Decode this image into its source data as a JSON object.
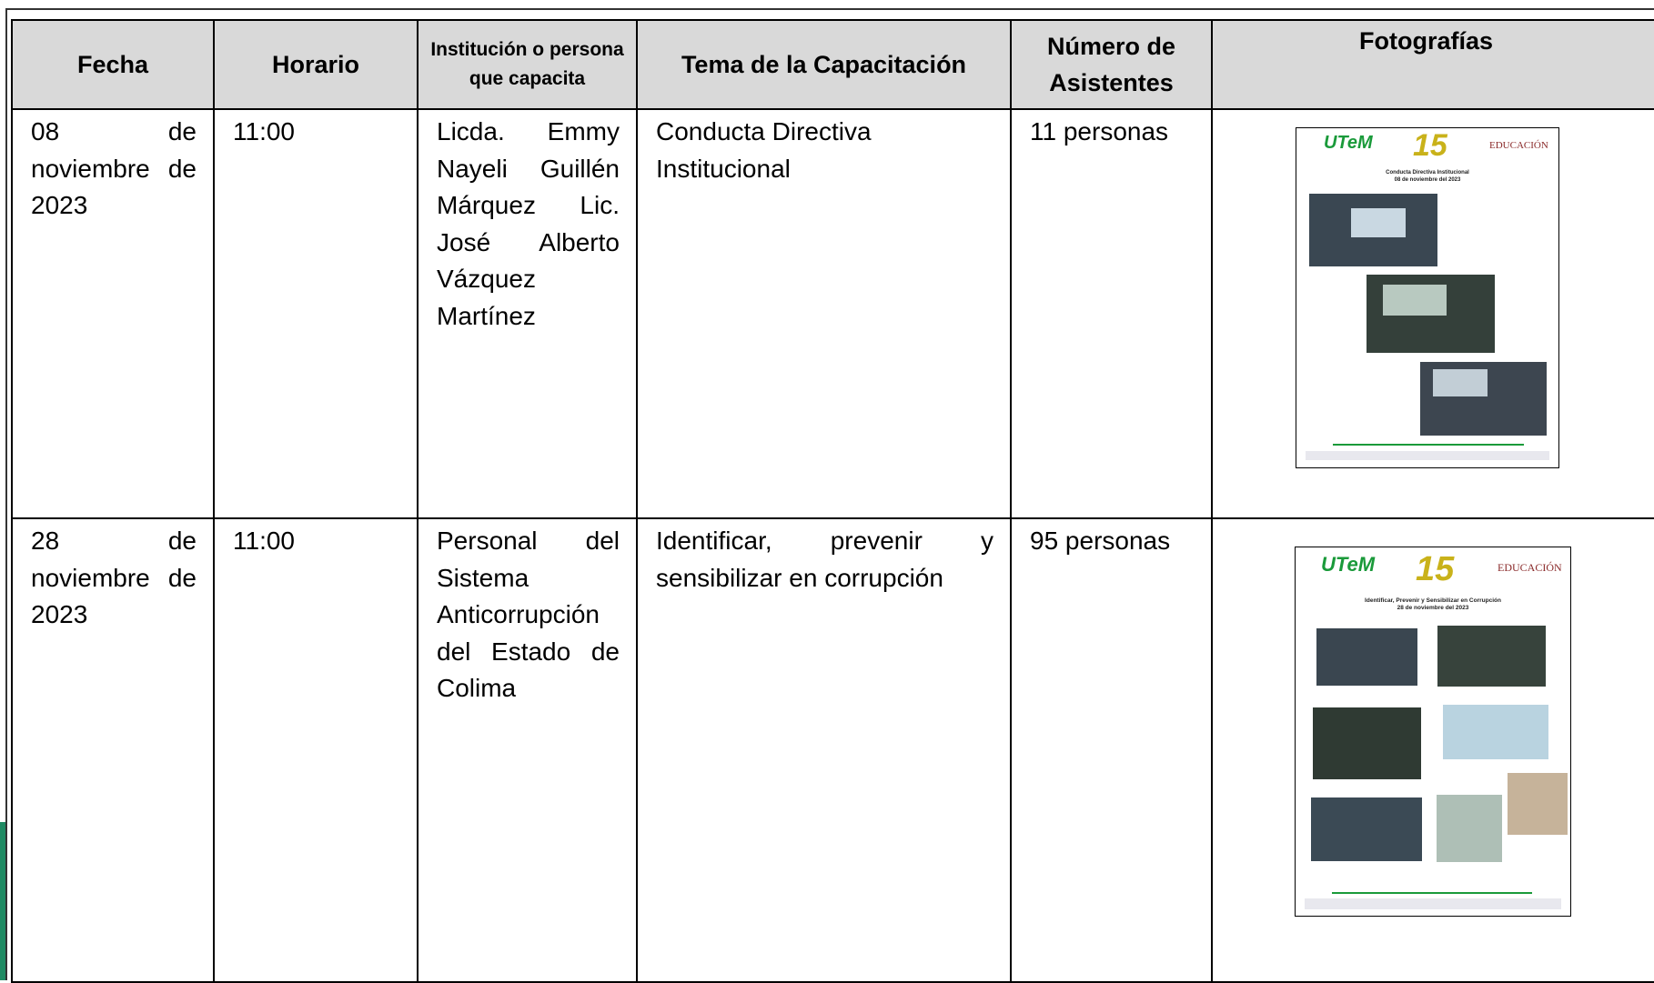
{
  "table": {
    "headers": [
      "Fecha",
      "Horario",
      "Institución o persona que capacita",
      "Tema de la Capacitación",
      "Número de Asistentes",
      "Fotografías"
    ],
    "rows": [
      [
        "08 de noviembre de 2023",
        "11:00",
        "Licda. Emmy Nayeli Guillén Márquez Lic. José Alberto Vázquez Martínez",
        "Conducta Directiva Institucional",
        "11 personas"
      ],
      [
        "28 de noviembre de 2023",
        "11:00",
        "Personal del Sistema Anticorrupción del Estado de Colima",
        "Identificar, prevenir y sensibilizar en corrupción",
        "95 personas"
      ]
    ]
  },
  "posters": [
    {
      "logo": "UTeM",
      "anniversary": "15",
      "ministry": "EDUCACIÓN",
      "title": "Conducta Directiva Institucional",
      "date": "08 de noviembre del 2023"
    },
    {
      "logo": "UTeM",
      "anniversary": "15",
      "ministry": "EDUCACIÓN",
      "title": "Identificar, Prevenir y Sensibilizar en Corrupción",
      "date": "28 de noviembre del 2023"
    }
  ]
}
